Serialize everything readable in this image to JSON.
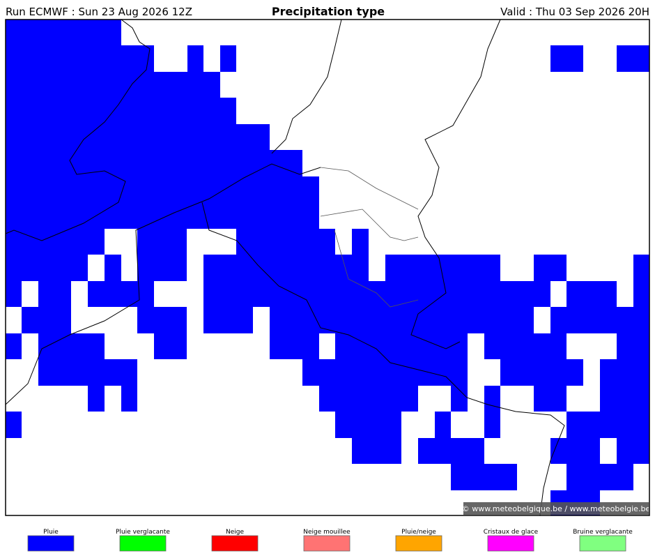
{
  "header": {
    "run": "Run ECMWF : Sun 23 Aug 2026 12Z",
    "title": "Precipitation type",
    "valid": "Valid : Thu 03 Sep 2026 20H"
  },
  "map": {
    "credit": "© www.meteobelgique.be / www.meteobelgie.be"
  },
  "legend": {
    "items": [
      {
        "label": "Pluie",
        "color": "#0000ff"
      },
      {
        "label": "Pluie verglacante",
        "color": "#00ff00"
      },
      {
        "label": "Neige",
        "color": "#ff0000"
      },
      {
        "label": "Neige mouillee",
        "color": "#ff7373"
      },
      {
        "label": "Pluie/neige",
        "color": "#ffa500"
      },
      {
        "label": "Cristaux de glace",
        "color": "#ff00ff"
      },
      {
        "label": "Bruine verglacante",
        "color": "#80ff80"
      }
    ]
  }
}
